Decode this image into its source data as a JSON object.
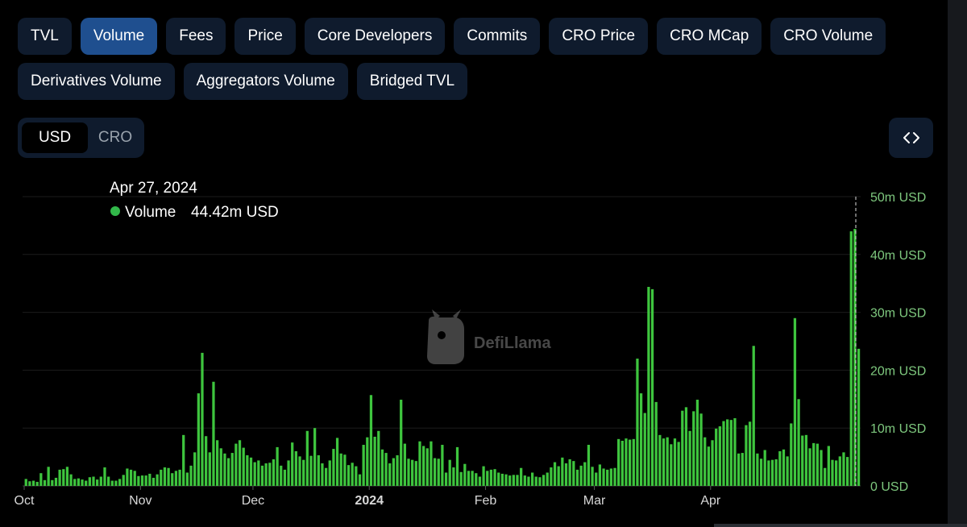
{
  "tabs_row1": [
    "TVL",
    "Volume",
    "Fees",
    "Price",
    "Core Developers",
    "Commits",
    "CRO Price",
    "CRO MCap",
    "CRO Volume"
  ],
  "tabs_row2": [
    "Derivatives Volume",
    "Aggregators Volume",
    "Bridged TVL"
  ],
  "active_tab": "Volume",
  "currency_toggle": {
    "options": [
      "USD",
      "CRO"
    ],
    "selected": "USD"
  },
  "embed_icon": "code-brackets-icon",
  "watermark": {
    "text": "DefiLlama",
    "icon": "llama-logo-icon"
  },
  "tooltip": {
    "date": "Apr 27, 2024",
    "label": "Volume",
    "value": "44.42m USD"
  },
  "colors": {
    "bar": "#3ec53e",
    "tooltip_dot": "#32b84a",
    "axis_text": "#7ec87e",
    "tab_bg": "#0f1b2d",
    "tab_active_bg": "#1f4f8f"
  },
  "chart_data": {
    "type": "bar",
    "series": [
      {
        "name": "Volume",
        "unit": "USD"
      }
    ],
    "y_ticks": [
      "0 USD",
      "10m USD",
      "20m USD",
      "30m USD",
      "40m USD",
      "50m USD"
    ],
    "ylim": [
      0,
      50
    ],
    "y_unit": "millions USD",
    "x_ticks": [
      {
        "label": "Oct",
        "day": 0
      },
      {
        "label": "Nov",
        "day": 31
      },
      {
        "label": "Dec",
        "day": 61
      },
      {
        "label": "2024",
        "day": 92,
        "bold": true
      },
      {
        "label": "Feb",
        "day": 123
      },
      {
        "label": "Mar",
        "day": 152
      },
      {
        "label": "Apr",
        "day": 183
      }
    ],
    "x_start": "2023-10-01",
    "x_end": "2024-04-28",
    "grid": true,
    "values": [
      1.2,
      0.8,
      0.9,
      0.7,
      2.2,
      1.0,
      3.3,
      1.0,
      1.4,
      2.8,
      2.9,
      3.3,
      2.0,
      1.2,
      1.3,
      1.1,
      0.9,
      1.5,
      1.6,
      1.1,
      1.6,
      3.2,
      1.6,
      0.9,
      0.9,
      1.2,
      1.9,
      3.0,
      2.8,
      2.6,
      1.7,
      1.8,
      1.8,
      2.1,
      1.4,
      2.0,
      2.8,
      3.2,
      3.1,
      2.2,
      2.6,
      2.8,
      8.8,
      2.3,
      3.5,
      5.8,
      16.0,
      23.0,
      8.6,
      5.8,
      18.0,
      7.9,
      6.5,
      5.6,
      4.8,
      5.7,
      7.3,
      7.9,
      6.6,
      5.3,
      4.9,
      4.1,
      4.4,
      3.5,
      3.9,
      4.0,
      4.6,
      6.7,
      3.5,
      2.8,
      4.4,
      7.5,
      6.0,
      5.1,
      4.5,
      9.5,
      5.2,
      10.0,
      5.3,
      3.9,
      3.1,
      4.4,
      6.4,
      8.3,
      5.6,
      5.4,
      3.6,
      4.0,
      3.4,
      2.0,
      7.1,
      8.4,
      15.7,
      8.5,
      9.5,
      6.3,
      5.7,
      3.9,
      4.8,
      5.3,
      14.9,
      7.3,
      4.7,
      4.5,
      4.3,
      7.7,
      6.9,
      6.5,
      7.7,
      4.8,
      4.7,
      7.1,
      2.3,
      4.5,
      3.2,
      6.7,
      2.4,
      3.8,
      2.6,
      2.6,
      2.2,
      1.6,
      3.4,
      2.6,
      2.8,
      2.9,
      2.3,
      2.1,
      2.0,
      1.8,
      1.9,
      1.9,
      3.1,
      1.8,
      1.6,
      2.3,
      1.6,
      1.5,
      1.9,
      2.3,
      3.2,
      4.1,
      3.4,
      4.9,
      3.9,
      4.6,
      4.3,
      2.8,
      3.5,
      4.1,
      7.1,
      3.3,
      2.3,
      3.7,
      3.0,
      2.8,
      3.0,
      3.1,
      8.1,
      7.8,
      8.2,
      8.0,
      8.1,
      22.0,
      16.0,
      12.6,
      34.4,
      34.0,
      14.5,
      8.8,
      8.2,
      8.4,
      7.2,
      8.2,
      7.6,
      13.0,
      13.6,
      9.5,
      12.9,
      14.9,
      12.5,
      8.4,
      6.8,
      7.9,
      9.9,
      10.3,
      11.2,
      11.5,
      11.4,
      11.7,
      5.6,
      5.7,
      10.5,
      11.1,
      24.2,
      5.6,
      4.7,
      6.2,
      4.4,
      4.5,
      4.6,
      6.0,
      6.3,
      5.1,
      10.8,
      29.0,
      15.0,
      8.7,
      8.8,
      6.5,
      7.4,
      7.3,
      6.2,
      3.1,
      6.9,
      4.5,
      4.4,
      5.1,
      5.8,
      5.0,
      44.0,
      44.42,
      23.7
    ]
  }
}
